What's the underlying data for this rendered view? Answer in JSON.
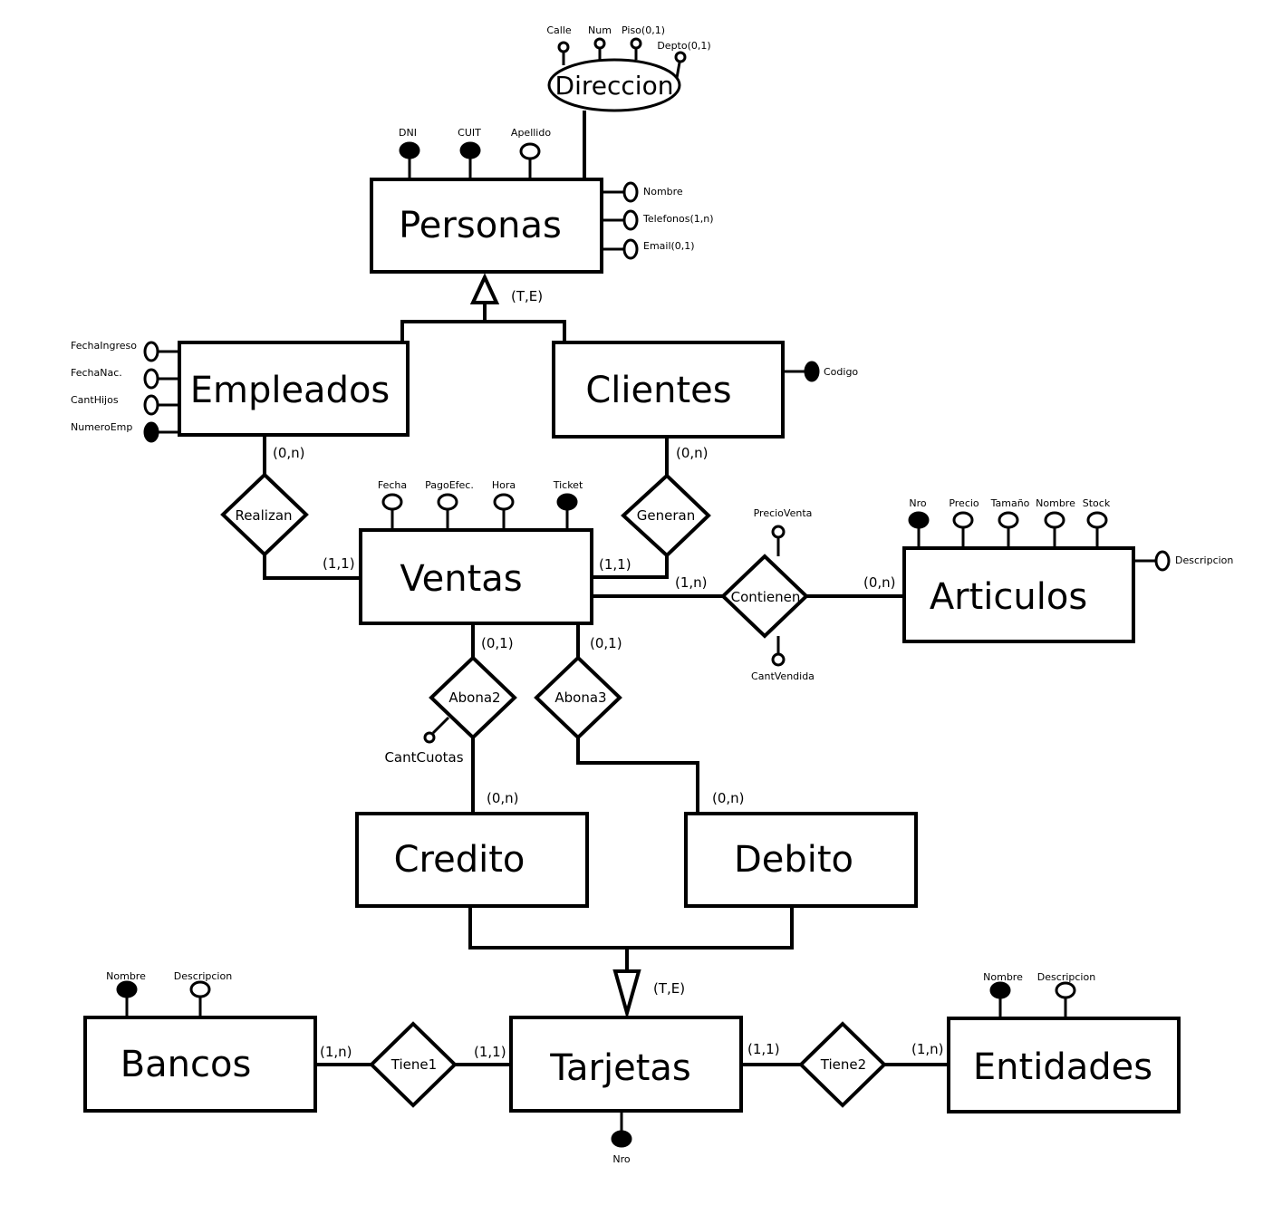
{
  "entities": {
    "personas": "Personas",
    "empleados": "Empleados",
    "clientes": "Clientes",
    "ventas": "Ventas",
    "articulos": "Articulos",
    "credito": "Credito",
    "debito": "Debito",
    "bancos": "Bancos",
    "tarjetas": "Tarjetas",
    "entidades": "Entidades"
  },
  "relationships": {
    "realizan": "Realizan",
    "generan": "Generan",
    "contienen": "Contienen",
    "abona2": "Abona2",
    "abona3": "Abona3",
    "tiene1": "Tiene1",
    "tiene2": "Tiene2"
  },
  "composite": {
    "direccion": "Direccion",
    "calle": "Calle",
    "num": "Num",
    "piso": "Piso(0,1)",
    "depto": "Depto(0,1)"
  },
  "attributes": {
    "personas": {
      "dni": "DNI",
      "cuit": "CUIT",
      "apellido": "Apellido",
      "nombre": "Nombre",
      "telefonos": "Telefonos(1,n)",
      "email": "Email(0,1)"
    },
    "empleados": {
      "fecha_ingreso": "FechaIngreso",
      "fecha_nac": "FechaNac.",
      "cant_hijos": "CantHijos",
      "numero_emp": "NumeroEmp"
    },
    "clientes": {
      "codigo": "Codigo"
    },
    "ventas": {
      "fecha": "Fecha",
      "pago_efec": "PagoEfec.",
      "hora": "Hora",
      "ticket": "Ticket"
    },
    "articulos": {
      "nro": "Nro",
      "precio": "Precio",
      "tamano": "Tamaño",
      "nombre": "Nombre",
      "stock": "Stock",
      "descripcion": "Descripcion"
    },
    "contienen": {
      "precio_venta": "PrecioVenta",
      "cant_vendida": "CantVendida"
    },
    "abona2": {
      "cant_cuotas": "CantCuotas"
    },
    "bancos": {
      "nombre": "Nombre",
      "descripcion": "Descripcion"
    },
    "entidades": {
      "nombre": "Nombre",
      "descripcion": "Descripcion"
    },
    "tarjetas": {
      "nro": "Nro"
    }
  },
  "cardinalities": {
    "empleados_realizan": "(0,n)",
    "ventas_realizan": "(1,1)",
    "clientes_generan": "(0,n)",
    "ventas_generan": "(1,1)",
    "ventas_contienen": "(1,n)",
    "articulos_contienen": "(0,n)",
    "ventas_abona2": "(0,1)",
    "ventas_abona3": "(0,1)",
    "credito_abona2": "(0,n)",
    "debito_abona3": "(0,n)",
    "bancos_tiene1": "(1,n)",
    "tarjetas_tiene1": "(1,1)",
    "tarjetas_tiene2": "(1,1)",
    "entidades_tiene2": "(1,n)"
  },
  "hierarchy": {
    "personas_label": "(T,E)",
    "tarjetas_label": "(T,E)"
  }
}
